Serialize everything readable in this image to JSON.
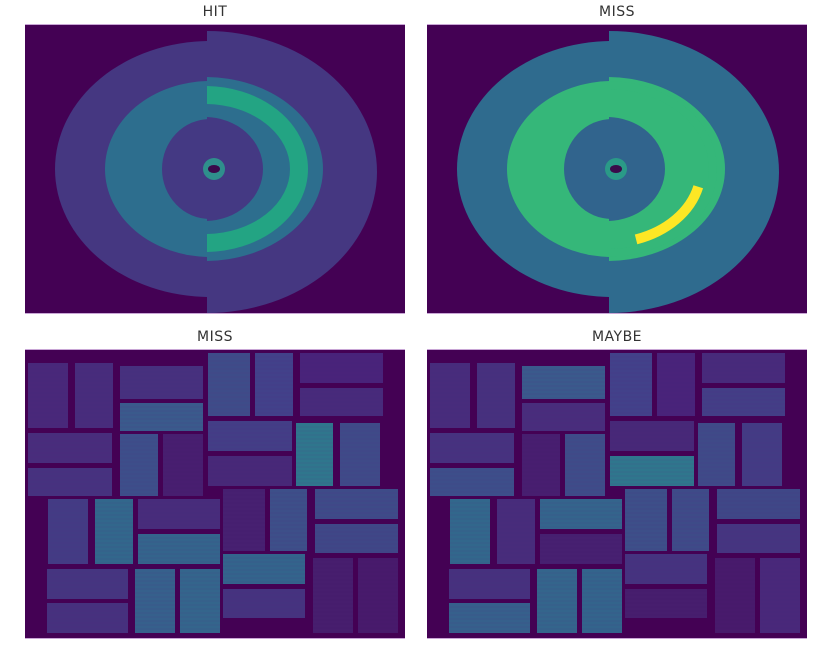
{
  "panels": [
    {
      "title": "HIT",
      "kind": "rings",
      "colors": {
        "bg": "#440154",
        "outer": "#453781",
        "ring": "#2d6e8e",
        "band": "#23a483",
        "inner": "#443983",
        "core": "#2f8f8c",
        "dot": "#3a0a4a"
      }
    },
    {
      "title": "MISS",
      "kind": "rings",
      "colors": {
        "bg": "#440154",
        "outer": "#2f6b8e",
        "ring": "#35b779",
        "band": "#fde725",
        "inner": "#31648d",
        "core": "#2a9a87",
        "dot": "#3a0a4a"
      }
    },
    {
      "title": "MISS",
      "kind": "tiles",
      "colors": {
        "bg": "#440154"
      }
    },
    {
      "title": "MAYBE",
      "kind": "tiles",
      "colors": {
        "bg": "#440154"
      }
    }
  ]
}
